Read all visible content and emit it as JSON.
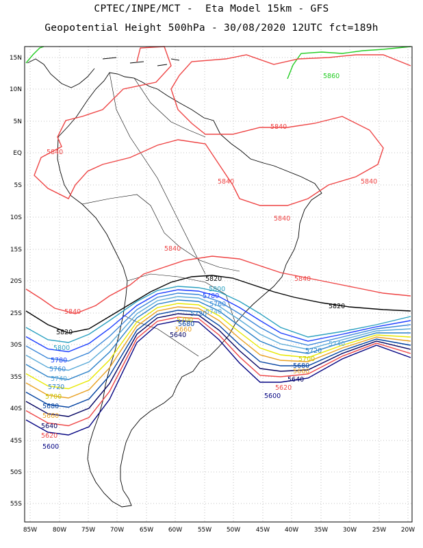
{
  "header": {
    "line1": "CPTEC/INPE/MCT -  Eta Model 15km - GFS",
    "line2": "Geopotential Height 500hPa - 30/08/2020 12UTC fct=189h"
  },
  "axes": {
    "lat_ticks": [
      "15N",
      "10N",
      "5N",
      "EQ",
      "5S",
      "10S",
      "15S",
      "20S",
      "25S",
      "30S",
      "35S",
      "40S",
      "45S",
      "50S",
      "55S"
    ],
    "lon_ticks": [
      "85W",
      "80W",
      "75W",
      "70W",
      "65W",
      "60W",
      "55W",
      "50W",
      "45W",
      "40W",
      "35W",
      "30W",
      "25W",
      "20W"
    ]
  },
  "colors": {
    "c5860": "#22cc22",
    "c5840": "#ee4444",
    "c5820": "#000000",
    "c5800": "#2aa0c0",
    "c5780": "#1a3cff",
    "c5760": "#3a86d8",
    "c5740": "#5aaad8",
    "c5720": "#2a80c8",
    "c5700": "#e8e800",
    "c5680": "#e8a020",
    "c5660": "#0040a0",
    "c5640": "#000060",
    "c5620": "#ee4444",
    "c5600": "#000080"
  },
  "contour_labels": {
    "north_5860": "5860",
    "north_5840_a": "5840",
    "north_5840_b": "5840",
    "north_5840_c": "5840",
    "north_5840_d": "5840",
    "north_5840_e": "5840",
    "mid_5840_a": "5840",
    "mid_5840_b": "5840",
    "mid_5840_c": "5840",
    "mid_5820_a": "5820",
    "mid_5820_b": "5820",
    "mid_5820_c": "5820",
    "c_5800": "5800",
    "c_5780": "5780",
    "c_5760": "5760",
    "c_5740": "5740",
    "c_5720": "5720",
    "c_5700": "5700",
    "c_5680": "5680",
    "c_5660": "5660",
    "c_5640": "5640",
    "l_5800": "5800",
    "l_5780": "5780",
    "l_5760": "5760",
    "l_5740": "5740",
    "l_5720": "5720",
    "l_5700": "5700",
    "l_5680": "5680",
    "l_5660": "5660",
    "l_5640": "5640",
    "l_5620": "5620",
    "l_5600": "5600",
    "r_5740": "5740",
    "r_5720": "5720",
    "r_5700": "5700",
    "r_5680": "5680",
    "r_5660": "5660",
    "r_5640": "5640",
    "r_5620": "5620",
    "r_5600": "5600"
  }
}
